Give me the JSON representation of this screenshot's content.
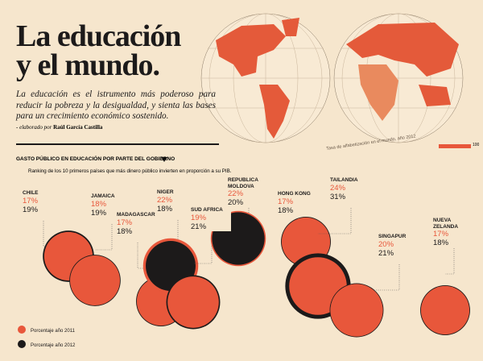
{
  "header": {
    "title_line1": "La educación",
    "title_line2": "y el mundo.",
    "intro": "La educación es el istrumento más poderoso para reducir la pobreza y la desigualdad, y sienta las bases para un crecimiento económico sostenido.",
    "credit_prefix": "- elaborado por",
    "credit_name": "Raúl García Castilla"
  },
  "map": {
    "caption": "Tasa de alfabetización en el mundo, año 2012",
    "scale_max": "100"
  },
  "chart_data": {
    "type": "bubble",
    "title": "GASTO PÚBLICO EN EDUCACIÓN POR PARTE DEL GOBIERNO",
    "subtitle": "Ranking de los 10 primeros países que más dinero público invierten en proporción a su PIB.",
    "categories": [
      "CHILE",
      "JAMAICA",
      "MADAGASCAR",
      "NIGER",
      "SUD AFRICA",
      "REPUBLICA MOLDOVA",
      "HONG KONG",
      "TAILANDIA",
      "SINGAPUR",
      "NUEVA ZELANDA"
    ],
    "series": [
      {
        "name": "Porcentaje año 2011",
        "color": "#e8573b",
        "values": [
          17,
          18,
          17,
          22,
          19,
          22,
          17,
          24,
          20,
          17
        ],
        "value_labels": [
          "17%",
          "18%",
          "17%",
          "22%",
          "19%",
          "22%",
          "17%",
          "24%",
          "20%",
          "17%"
        ]
      },
      {
        "name": "Porcentaje año 2012",
        "color": "#1c1a1a",
        "values": [
          19,
          19,
          18,
          18,
          21,
          20,
          18,
          31,
          21,
          18
        ],
        "value_labels": [
          "19%",
          "19%",
          "18%",
          "18%",
          "21%",
          "20%",
          "18%",
          "31%",
          "21%",
          "18%"
        ]
      }
    ]
  }
}
